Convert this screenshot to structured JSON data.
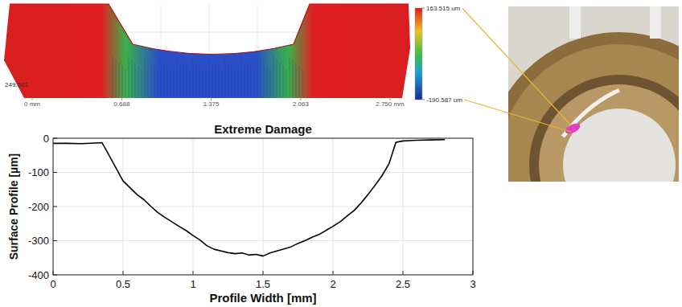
{
  "chart_data": [
    {
      "type": "surface",
      "xlim": [
        0,
        2.75
      ],
      "xticks": [
        {
          "value": 0,
          "label": "0 mm"
        },
        0.688,
        1.375,
        2.063,
        {
          "value": 2.75,
          "label": "2.750 mm"
        }
      ],
      "zticks": [
        249.561
      ],
      "colorbar_range": [
        -190.587,
        163.515
      ],
      "colorbar_ticks": [
        {
          "value": 163.515,
          "label": "163.515 um"
        },
        {
          "value": -190.587,
          "label": "-190.587 um"
        }
      ]
    },
    {
      "type": "line",
      "title": "Extreme Damage",
      "x_label": "Profile Width [mm]",
      "y_label": "Surface Profile [µm]",
      "x": [
        0,
        0.1,
        0.2,
        0.3,
        0.35,
        0.38,
        0.42,
        0.46,
        0.5,
        0.55,
        0.6,
        0.65,
        0.7,
        0.75,
        0.8,
        0.85,
        0.9,
        0.95,
        1.0,
        1.05,
        1.1,
        1.15,
        1.2,
        1.25,
        1.3,
        1.35,
        1.4,
        1.45,
        1.5,
        1.55,
        1.6,
        1.65,
        1.7,
        1.75,
        1.8,
        1.85,
        1.9,
        1.95,
        2.0,
        2.05,
        2.1,
        2.15,
        2.2,
        2.25,
        2.3,
        2.35,
        2.4,
        2.45,
        2.5,
        2.6,
        2.7,
        2.8
      ],
      "values": [
        -15,
        -15,
        -16,
        -14,
        -13,
        -35,
        -65,
        -95,
        -125,
        -145,
        -165,
        -180,
        -200,
        -218,
        -232,
        -245,
        -258,
        -270,
        -285,
        -298,
        -315,
        -325,
        -330,
        -335,
        -338,
        -336,
        -342,
        -340,
        -345,
        -336,
        -330,
        -324,
        -318,
        -308,
        -300,
        -290,
        -282,
        -270,
        -258,
        -245,
        -228,
        -212,
        -190,
        -165,
        -138,
        -110,
        -75,
        -12,
        -8,
        -6,
        -5,
        -4
      ],
      "color": "#000000",
      "xlim": [
        0,
        3
      ],
      "xticks": [
        0,
        0.5,
        1,
        1.5,
        2,
        2.5,
        3
      ],
      "ylim": [
        -400,
        0
      ],
      "yticks": [
        -400,
        -300,
        -200,
        -100,
        0
      ],
      "grid": true
    }
  ]
}
